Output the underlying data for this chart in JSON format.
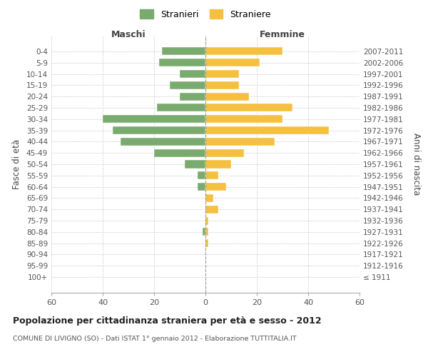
{
  "age_groups": [
    "100+",
    "95-99",
    "90-94",
    "85-89",
    "80-84",
    "75-79",
    "70-74",
    "65-69",
    "60-64",
    "55-59",
    "50-54",
    "45-49",
    "40-44",
    "35-39",
    "30-34",
    "25-29",
    "20-24",
    "15-19",
    "10-14",
    "5-9",
    "0-4"
  ],
  "birth_years": [
    "≤ 1911",
    "1912-1916",
    "1917-1921",
    "1922-1926",
    "1927-1931",
    "1932-1936",
    "1937-1941",
    "1942-1946",
    "1947-1951",
    "1952-1956",
    "1957-1961",
    "1962-1966",
    "1967-1971",
    "1972-1976",
    "1977-1981",
    "1982-1986",
    "1987-1991",
    "1992-1996",
    "1997-2001",
    "2002-2006",
    "2007-2011"
  ],
  "maschi": [
    0,
    0,
    0,
    0,
    1,
    0,
    0,
    0,
    3,
    3,
    8,
    20,
    33,
    36,
    40,
    19,
    10,
    14,
    10,
    18,
    17
  ],
  "femmine": [
    0,
    0,
    0,
    1,
    1,
    1,
    5,
    3,
    8,
    5,
    10,
    15,
    27,
    48,
    30,
    34,
    17,
    13,
    13,
    21,
    30
  ],
  "color_maschi": "#7aab6e",
  "color_femmine": "#f5c040",
  "title": "Popolazione per cittadinanza straniera per età e sesso - 2012",
  "subtitle": "COMUNE DI LIVIGNO (SO) - Dati ISTAT 1° gennaio 2012 - Elaborazione TUTTITALIA.IT",
  "xlabel_left": "Maschi",
  "xlabel_right": "Femmine",
  "ylabel_left": "Fasce di età",
  "ylabel_right": "Anni di nascita",
  "legend_stranieri": "Stranieri",
  "legend_straniere": "Straniere",
  "xlim": 60,
  "background_color": "#ffffff",
  "grid_color": "#cccccc"
}
